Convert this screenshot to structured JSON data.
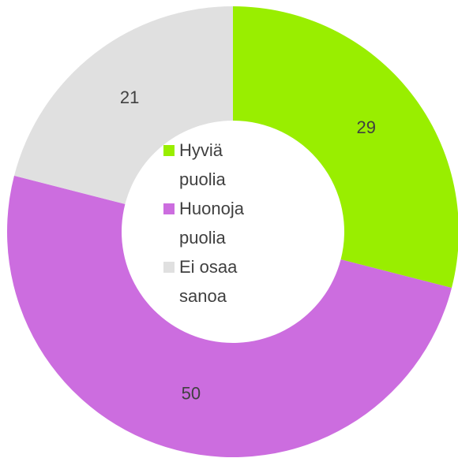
{
  "chart_data": {
    "type": "donut",
    "categories": [
      "Hyviä puolia",
      "Huonoja puolia",
      "Ei osaa sanoa"
    ],
    "values": [
      29,
      50,
      21
    ],
    "colors": [
      "#99ee00",
      "#cc6ddf",
      "#e0e0e0"
    ],
    "legend": "center"
  }
}
